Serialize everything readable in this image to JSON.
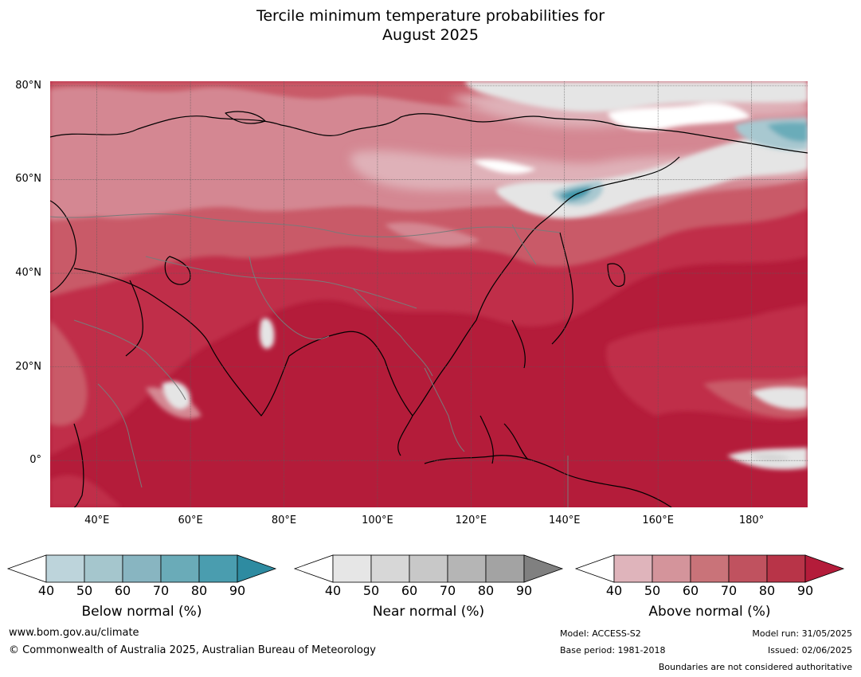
{
  "title_line1": "Tercile minimum temperature probabilities for",
  "title_line2": "August 2025",
  "map": {
    "lon_range": [
      30,
      192
    ],
    "lat_range": [
      -10,
      81
    ],
    "lat_labels": [
      "80°N",
      "60°N",
      "40°N",
      "20°N",
      "0°"
    ],
    "lat_values": [
      80,
      60,
      40,
      20,
      0
    ],
    "lon_labels": [
      "40°E",
      "60°E",
      "80°E",
      "100°E",
      "120°E",
      "140°E",
      "160°E",
      "180°"
    ],
    "lon_values": [
      40,
      60,
      80,
      100,
      120,
      140,
      160,
      180
    ],
    "dominant_category": "Above normal",
    "colors": {
      "above_90": "#b41c3a",
      "above_80": "#c02e48",
      "above_70": "#c95a68",
      "above_60": "#d48792",
      "above_50": "#dfb1b8",
      "near_50": "#e5e5e5",
      "near_60": "#d6d6d6",
      "below_50": "#a8c8d0",
      "below_60": "#6aacb9",
      "below_80": "#3f97aa",
      "grid": "#5a5a5a"
    }
  },
  "colorbars": [
    {
      "name": "below",
      "title": "Below normal (%)",
      "ticks": [
        "40",
        "50",
        "60",
        "70",
        "80",
        "90"
      ],
      "colors": [
        "#bdd4db",
        "#a5c6cd",
        "#88b5c1",
        "#6aabb8",
        "#4a9daf",
        "#2e8ba1"
      ]
    },
    {
      "name": "near",
      "title": "Near normal (%)",
      "ticks": [
        "40",
        "50",
        "60",
        "70",
        "80",
        "90"
      ],
      "colors": [
        "#e6e6e6",
        "#d7d7d7",
        "#c8c8c8",
        "#b5b5b5",
        "#a3a3a3",
        "#808080"
      ]
    },
    {
      "name": "above",
      "title": "Above normal (%)",
      "ticks": [
        "40",
        "50",
        "60",
        "70",
        "80",
        "90"
      ],
      "colors": [
        "#dfb4bb",
        "#d4949b",
        "#c97379",
        "#c0525f",
        "#b83448",
        "#b41c3a"
      ]
    }
  ],
  "footer": {
    "website": "www.bom.gov.au/climate",
    "copyright": "© Commonwealth of Australia 2025, Australian Bureau of Meteorology",
    "model": "Model: ACCESS-S2",
    "base_period": "Base period: 1981-2018",
    "model_run": "Model run: 31/05/2025",
    "issued": "Issued: 02/06/2025",
    "disclaimer": "Boundaries are not considered authoritative"
  }
}
